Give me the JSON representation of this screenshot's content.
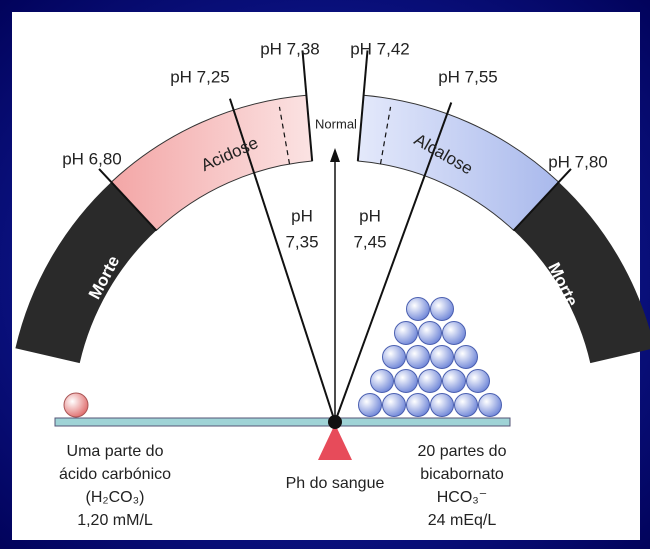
{
  "scale": {
    "ph_738": "pH 7,38",
    "ph_742": "pH 7,42",
    "ph_725": "pH 7,25",
    "ph_755": "pH 7,55",
    "ph_680": "pH 6,80",
    "ph_780": "pH 7,80",
    "normal": "Normal",
    "acidose": "Acidose",
    "alcalose": "Alcalose",
    "morte_left": "Morte",
    "morte_right": "Morte",
    "ph_735": [
      "pH",
      "7,35"
    ],
    "ph_745": [
      "pH",
      "7,45"
    ]
  },
  "left_caption": [
    "Uma parte do",
    "ácido carbónico",
    "(H₂CO₃)",
    "1,20 mM/L"
  ],
  "center_caption": "Ph do sangue",
  "right_caption": [
    "20 partes do",
    "bicabornato",
    "HCO₃⁻",
    "24 mEq/L"
  ]
}
